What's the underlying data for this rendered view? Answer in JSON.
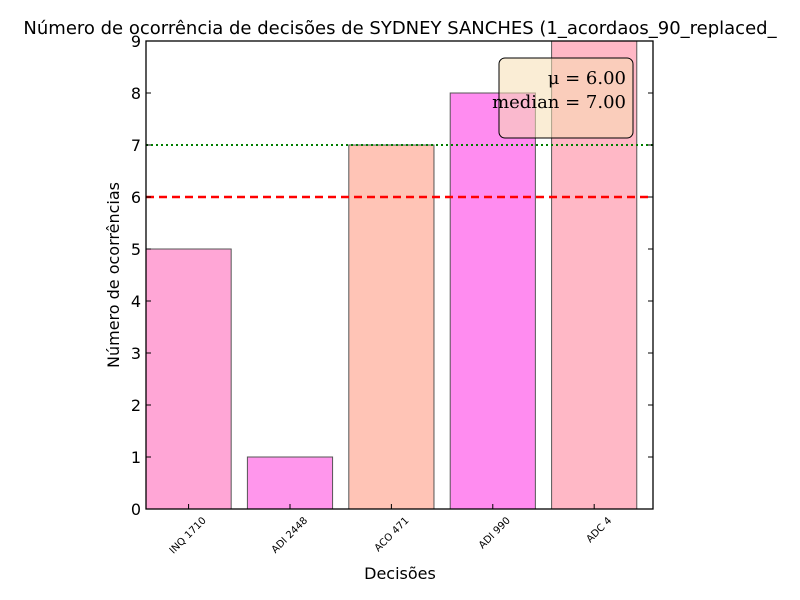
{
  "chart_data": {
    "type": "bar",
    "title": "Número de ocorrência de decisões de SYDNEY SANCHES (1_acordaos_90_replaced_",
    "xlabel": "Decisões",
    "ylabel": "Número de ocorrências",
    "categories": [
      "INQ 1710",
      "ADI 2448",
      "ACO 471",
      "ADI 990",
      "ADC 4"
    ],
    "values": [
      5,
      1,
      7,
      8,
      9
    ],
    "bar_colors": [
      "#ffa6d6",
      "#ff96ec",
      "#ffc4b6",
      "#ff8cf0",
      "#ffb8c6"
    ],
    "ylim": [
      0,
      9
    ],
    "yticks": [
      0,
      1,
      2,
      3,
      4,
      5,
      6,
      7,
      8,
      9
    ],
    "grid": false,
    "reference_lines": [
      {
        "name": "mean",
        "value": 6,
        "style": "dashed",
        "color": "#ff0000"
      },
      {
        "name": "median",
        "value": 7,
        "style": "dotted",
        "color": "#008000"
      }
    ],
    "legend": {
      "placement": "top-right",
      "lines": [
        "μ = 6.00",
        "median = 7.00"
      ]
    }
  }
}
